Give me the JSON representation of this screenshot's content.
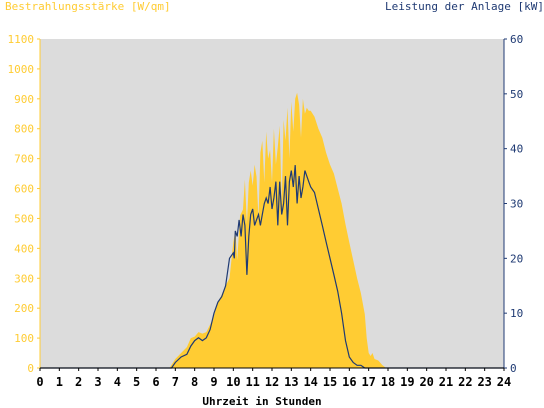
{
  "chart_data": {
    "type": "area",
    "left_axis_title": "Bestrahlungsstärke [W/qm]",
    "right_axis_title": "Leistung der Anlage [kW]",
    "xlabel": "Uhrzeit in Stunden",
    "x_ticks": [
      "0",
      "1",
      "2",
      "3",
      "4",
      "5",
      "6",
      "7",
      "8",
      "9",
      "10",
      "11",
      "12",
      "13",
      "14",
      "15",
      "16",
      "17",
      "18",
      "19",
      "20",
      "21",
      "22",
      "23",
      "24"
    ],
    "y_left_ticks": [
      "0",
      "100",
      "200",
      "300",
      "400",
      "500",
      "600",
      "700",
      "800",
      "900",
      "1000",
      "1100"
    ],
    "y_right_ticks": [
      "0",
      "10",
      "20",
      "30",
      "40",
      "50",
      "60"
    ],
    "xlim": [
      0,
      24
    ],
    "ylim_left": [
      0,
      1100
    ],
    "ylim_right": [
      0,
      60
    ],
    "grid": false,
    "colors": {
      "plot_background": "#dcdcdc",
      "irradiance_fill": "#ffcc33",
      "power_line": "#1f3a73",
      "left_axis": "#ffcc33",
      "right_axis": "#1f3a73"
    },
    "series": [
      {
        "key": "irradiance",
        "axis": "left",
        "style": "area",
        "x": [
          0,
          6.7,
          7,
          7.3,
          7.6,
          7.8,
          8,
          8.2,
          8.4,
          8.6,
          8.8,
          9,
          9.2,
          9.4,
          9.6,
          9.8,
          10,
          10.1,
          10.2,
          10.35,
          10.5,
          10.6,
          10.7,
          10.8,
          10.9,
          11,
          11.1,
          11.2,
          11.3,
          11.4,
          11.5,
          11.6,
          11.7,
          11.8,
          11.9,
          12,
          12.1,
          12.2,
          12.3,
          12.4,
          12.5,
          12.6,
          12.7,
          12.8,
          12.9,
          13,
          13.1,
          13.2,
          13.3,
          13.4,
          13.5,
          13.6,
          13.7,
          13.8,
          13.9,
          14,
          14.2,
          14.4,
          14.6,
          14.8,
          15,
          15.2,
          15.4,
          15.6,
          15.8,
          16,
          16.2,
          16.4,
          16.6,
          16.8,
          16.9,
          17,
          17.1,
          17.2,
          17.3,
          17.5,
          17.7,
          17.9,
          18,
          18.2,
          24
        ],
        "y": [
          0,
          0,
          30,
          50,
          70,
          100,
          105,
          120,
          115,
          120,
          145,
          175,
          220,
          245,
          275,
          300,
          420,
          460,
          360,
          510,
          530,
          630,
          480,
          620,
          660,
          610,
          680,
          640,
          500,
          720,
          760,
          620,
          790,
          700,
          730,
          620,
          800,
          680,
          740,
          810,
          550,
          830,
          760,
          870,
          700,
          890,
          790,
          900,
          920,
          880,
          770,
          900,
          850,
          870,
          860,
          860,
          840,
          800,
          770,
          720,
          680,
          650,
          600,
          550,
          480,
          420,
          360,
          300,
          250,
          180,
          100,
          50,
          40,
          50,
          30,
          25,
          10,
          0,
          0,
          0,
          0
        ]
      },
      {
        "key": "power",
        "axis": "right",
        "style": "line",
        "x": [
          0,
          6.8,
          7,
          7.3,
          7.6,
          7.8,
          8,
          8.2,
          8.4,
          8.6,
          8.8,
          9,
          9.2,
          9.4,
          9.6,
          9.8,
          10,
          10.05,
          10.1,
          10.2,
          10.3,
          10.4,
          10.5,
          10.6,
          10.7,
          10.8,
          10.9,
          11,
          11.1,
          11.2,
          11.3,
          11.4,
          11.5,
          11.6,
          11.7,
          11.8,
          11.9,
          12,
          12.1,
          12.2,
          12.3,
          12.4,
          12.5,
          12.6,
          12.7,
          12.8,
          12.9,
          13,
          13.1,
          13.2,
          13.3,
          13.4,
          13.5,
          13.6,
          13.7,
          13.8,
          13.9,
          14,
          14.2,
          14.4,
          14.6,
          14.8,
          15,
          15.2,
          15.4,
          15.6,
          15.8,
          16,
          16.2,
          16.4,
          16.6,
          16.8,
          17,
          17.2,
          17.4,
          17.6,
          17.8,
          18,
          24
        ],
        "y": [
          0,
          0,
          1,
          2,
          2.5,
          4,
          5,
          5.5,
          5,
          5.5,
          7,
          10,
          12,
          13,
          15,
          20,
          21,
          20,
          25,
          24,
          27,
          24,
          28,
          26,
          17,
          24,
          28,
          29,
          26,
          27,
          28,
          26,
          28,
          30,
          31,
          30,
          33,
          29,
          31,
          34,
          26,
          34,
          28,
          30,
          35,
          26,
          34,
          36,
          33,
          37,
          30,
          35,
          31,
          33,
          36,
          35,
          34,
          33,
          32,
          29,
          26,
          23,
          20,
          17,
          14,
          10,
          5,
          2,
          1,
          0.5,
          0.5,
          0,
          0,
          0,
          0,
          0,
          0,
          0,
          0
        ]
      }
    ]
  }
}
